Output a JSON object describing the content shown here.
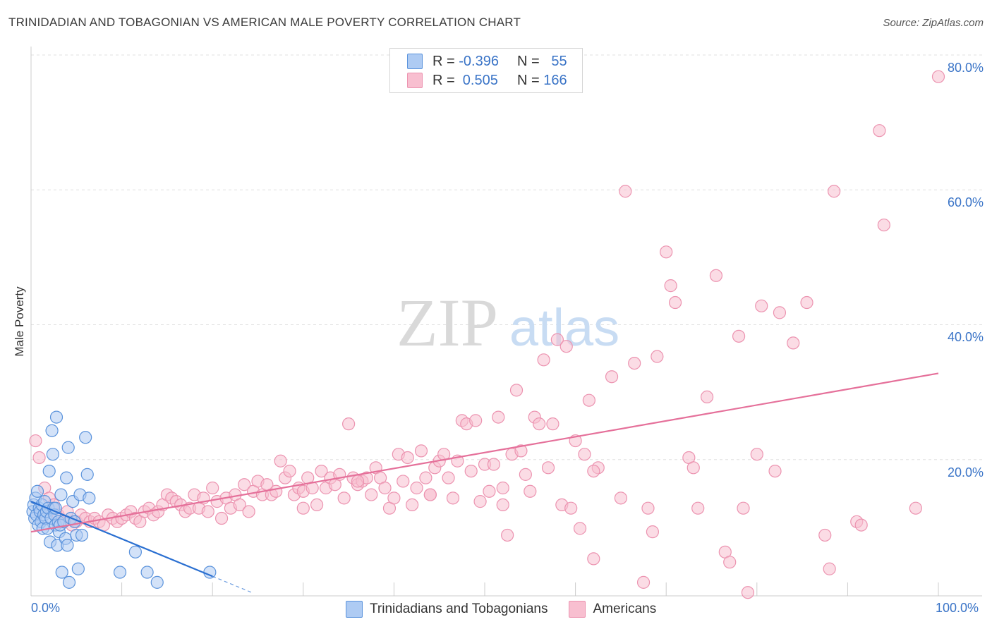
{
  "title": "TRINIDADIAN AND TOBAGONIAN VS AMERICAN MALE POVERTY CORRELATION CHART",
  "source": "Source: ZipAtlas.com",
  "watermark": {
    "zip": "ZIP",
    "atlas": "atlas"
  },
  "legend": {
    "rows": [
      {
        "r_label": "R = ",
        "r_value": "-0.396",
        "n_label": "N = ",
        "n_value": "55"
      },
      {
        "r_label": "R = ",
        "r_value": " 0.505",
        "n_label": "N = ",
        "n_value": "166"
      }
    ]
  },
  "bottom_legend": [
    "Trinidadians and Tobagonians",
    "Americans"
  ],
  "axis": {
    "y_title": "Male Poverty",
    "x_ticks": [
      "0.0%",
      "100.0%"
    ],
    "y_ticks": [
      "80.0%",
      "60.0%",
      "40.0%",
      "20.0%"
    ]
  },
  "colors": {
    "blue_fill": "#aecbf3",
    "blue_stroke": "#5b93dc",
    "blue_line": "#2a6fd1",
    "pink_fill": "#f8bfd0",
    "pink_stroke": "#ec93b0",
    "pink_line": "#e5709a",
    "grid": "#e0e0e0",
    "tick_text": "#3a74c7"
  },
  "chart_data": {
    "type": "scatter",
    "xlim": [
      0,
      100
    ],
    "ylim": [
      0,
      80
    ],
    "grid": true,
    "series": [
      {
        "name": "Trinidadians and Tobagonians",
        "trend": {
          "x0": 0,
          "y0": 14,
          "x1": 20,
          "y1": 2.9,
          "dash_to_x": 24.5
        },
        "points": [
          [
            0.2,
            12.5
          ],
          [
            0.3,
            13.5
          ],
          [
            0.4,
            11.5
          ],
          [
            0.5,
            14.5
          ],
          [
            0.6,
            12.0
          ],
          [
            0.7,
            15.5
          ],
          [
            0.8,
            10.5
          ],
          [
            0.9,
            13.0
          ],
          [
            1.0,
            12.5
          ],
          [
            1.1,
            11.0
          ],
          [
            1.2,
            13.5
          ],
          [
            1.3,
            10.0
          ],
          [
            1.4,
            12.0
          ],
          [
            1.5,
            14.0
          ],
          [
            1.6,
            11.5
          ],
          [
            1.7,
            12.5
          ],
          [
            1.8,
            10.0
          ],
          [
            1.9,
            13.0
          ],
          [
            2.0,
            18.5
          ],
          [
            2.1,
            8.0
          ],
          [
            2.2,
            11.5
          ],
          [
            2.3,
            24.5
          ],
          [
            2.4,
            21.0
          ],
          [
            2.5,
            13.0
          ],
          [
            2.6,
            12.0
          ],
          [
            2.7,
            10.5
          ],
          [
            2.8,
            26.5
          ],
          [
            2.9,
            7.5
          ],
          [
            3.0,
            11.0
          ],
          [
            3.1,
            9.5
          ],
          [
            3.2,
            10.5
          ],
          [
            3.3,
            15.0
          ],
          [
            3.4,
            3.5
          ],
          [
            3.6,
            11.0
          ],
          [
            3.8,
            8.5
          ],
          [
            3.9,
            17.5
          ],
          [
            4.0,
            7.5
          ],
          [
            4.1,
            22.0
          ],
          [
            4.2,
            2.0
          ],
          [
            4.4,
            11.5
          ],
          [
            4.6,
            14.0
          ],
          [
            4.8,
            11.0
          ],
          [
            5.0,
            9.0
          ],
          [
            5.2,
            4.0
          ],
          [
            5.4,
            15.0
          ],
          [
            5.6,
            9.0
          ],
          [
            6.0,
            23.5
          ],
          [
            6.2,
            18.0
          ],
          [
            6.4,
            14.5
          ],
          [
            9.8,
            3.5
          ],
          [
            11.5,
            6.5
          ],
          [
            12.8,
            3.5
          ],
          [
            13.9,
            2.0
          ],
          [
            19.7,
            3.5
          ],
          [
            2.7,
            13.0
          ]
        ]
      },
      {
        "name": "Americans",
        "trend": {
          "x0": 0,
          "y0": 9.5,
          "x1": 100,
          "y1": 33.0
        },
        "points": [
          [
            0.5,
            23.0
          ],
          [
            0.9,
            20.5
          ],
          [
            1.5,
            16.0
          ],
          [
            2.0,
            14.5
          ],
          [
            2.5,
            13.5
          ],
          [
            3.0,
            12.0
          ],
          [
            3.5,
            11.0
          ],
          [
            4.0,
            12.5
          ],
          [
            4.5,
            10.5
          ],
          [
            5.0,
            11.0
          ],
          [
            5.5,
            12.0
          ],
          [
            6.0,
            11.5
          ],
          [
            6.5,
            11.0
          ],
          [
            7.0,
            11.5
          ],
          [
            7.5,
            11.0
          ],
          [
            8.0,
            10.5
          ],
          [
            8.5,
            12.0
          ],
          [
            9.0,
            11.5
          ],
          [
            9.5,
            11.0
          ],
          [
            10.0,
            11.5
          ],
          [
            10.5,
            12.0
          ],
          [
            11.0,
            12.5
          ],
          [
            11.5,
            11.5
          ],
          [
            12.0,
            11.0
          ],
          [
            12.5,
            12.5
          ],
          [
            13.0,
            13.0
          ],
          [
            13.5,
            12.0
          ],
          [
            14.0,
            12.5
          ],
          [
            14.5,
            13.5
          ],
          [
            15.0,
            15.0
          ],
          [
            15.5,
            14.5
          ],
          [
            16.0,
            14.0
          ],
          [
            16.5,
            13.5
          ],
          [
            17.0,
            12.5
          ],
          [
            17.5,
            13.0
          ],
          [
            18.0,
            15.0
          ],
          [
            18.5,
            13.0
          ],
          [
            19.0,
            14.5
          ],
          [
            19.5,
            12.5
          ],
          [
            20.0,
            16.0
          ],
          [
            20.5,
            14.0
          ],
          [
            21.0,
            11.5
          ],
          [
            21.5,
            14.5
          ],
          [
            22.0,
            13.0
          ],
          [
            22.5,
            15.0
          ],
          [
            23.0,
            13.5
          ],
          [
            23.5,
            16.5
          ],
          [
            24.0,
            12.5
          ],
          [
            24.5,
            15.5
          ],
          [
            25.0,
            17.0
          ],
          [
            25.5,
            15.0
          ],
          [
            26.0,
            16.5
          ],
          [
            26.5,
            15.0
          ],
          [
            27.0,
            15.5
          ],
          [
            27.5,
            20.0
          ],
          [
            28.0,
            17.5
          ],
          [
            28.5,
            18.5
          ],
          [
            29.0,
            15.0
          ],
          [
            29.5,
            16.0
          ],
          [
            30.0,
            15.5
          ],
          [
            30.5,
            17.5
          ],
          [
            31.0,
            16.0
          ],
          [
            31.5,
            13.5
          ],
          [
            32.0,
            18.5
          ],
          [
            32.5,
            16.0
          ],
          [
            33.0,
            17.5
          ],
          [
            33.5,
            16.5
          ],
          [
            34.0,
            18.0
          ],
          [
            34.5,
            14.5
          ],
          [
            35.0,
            25.5
          ],
          [
            35.5,
            17.5
          ],
          [
            36.0,
            16.5
          ],
          [
            36.5,
            17.0
          ],
          [
            37.0,
            17.5
          ],
          [
            37.5,
            15.0
          ],
          [
            38.0,
            19.0
          ],
          [
            38.5,
            17.5
          ],
          [
            39.0,
            16.0
          ],
          [
            39.5,
            13.0
          ],
          [
            40.0,
            14.5
          ],
          [
            40.5,
            21.0
          ],
          [
            41.0,
            17.0
          ],
          [
            41.5,
            20.5
          ],
          [
            42.0,
            13.5
          ],
          [
            42.5,
            16.0
          ],
          [
            43.0,
            21.5
          ],
          [
            43.5,
            17.5
          ],
          [
            44.0,
            15.0
          ],
          [
            44.5,
            19.0
          ],
          [
            45.0,
            20.0
          ],
          [
            45.5,
            21.0
          ],
          [
            46.0,
            17.5
          ],
          [
            46.5,
            14.5
          ],
          [
            47.0,
            20.0
          ],
          [
            47.5,
            26.0
          ],
          [
            48.0,
            25.5
          ],
          [
            48.5,
            18.5
          ],
          [
            49.0,
            26.0
          ],
          [
            49.5,
            14.0
          ],
          [
            50.0,
            19.5
          ],
          [
            50.5,
            15.5
          ],
          [
            51.0,
            19.5
          ],
          [
            51.5,
            26.5
          ],
          [
            52.0,
            16.0
          ],
          [
            52.5,
            9.0
          ],
          [
            53.0,
            21.0
          ],
          [
            53.5,
            30.5
          ],
          [
            54.0,
            21.5
          ],
          [
            54.5,
            18.0
          ],
          [
            55.0,
            15.5
          ],
          [
            55.5,
            26.5
          ],
          [
            56.0,
            25.5
          ],
          [
            56.5,
            35.0
          ],
          [
            57.0,
            19.0
          ],
          [
            57.5,
            25.5
          ],
          [
            58.0,
            38.0
          ],
          [
            58.5,
            13.5
          ],
          [
            59.0,
            37.0
          ],
          [
            59.5,
            13.0
          ],
          [
            60.0,
            23.0
          ],
          [
            60.5,
            10.0
          ],
          [
            61.0,
            21.0
          ],
          [
            61.5,
            29.0
          ],
          [
            62.0,
            5.5
          ],
          [
            62.5,
            19.0
          ],
          [
            64.0,
            32.5
          ],
          [
            65.5,
            60.0
          ],
          [
            65.0,
            14.5
          ],
          [
            66.5,
            34.5
          ],
          [
            67.5,
            2.0
          ],
          [
            68.0,
            13.0
          ],
          [
            68.5,
            9.5
          ],
          [
            69.0,
            35.5
          ],
          [
            70.0,
            51.0
          ],
          [
            70.5,
            46.0
          ],
          [
            71.0,
            43.5
          ],
          [
            72.5,
            20.5
          ],
          [
            73.0,
            19.0
          ],
          [
            73.5,
            13.0
          ],
          [
            74.5,
            29.5
          ],
          [
            75.5,
            47.5
          ],
          [
            76.5,
            6.5
          ],
          [
            77.0,
            5.0
          ],
          [
            78.0,
            38.5
          ],
          [
            78.5,
            13.0
          ],
          [
            79.0,
            0.5
          ],
          [
            80.0,
            21.0
          ],
          [
            80.5,
            43.0
          ],
          [
            82.0,
            18.5
          ],
          [
            82.5,
            42.0
          ],
          [
            84.0,
            37.5
          ],
          [
            85.5,
            43.5
          ],
          [
            87.5,
            9.0
          ],
          [
            88.0,
            4.0
          ],
          [
            88.5,
            60.0
          ],
          [
            91.0,
            11.0
          ],
          [
            91.5,
            10.5
          ],
          [
            93.5,
            69.0
          ],
          [
            94.0,
            55.0
          ],
          [
            97.5,
            13.0
          ],
          [
            100.0,
            77.0
          ],
          [
            44.0,
            15.0
          ],
          [
            52.0,
            13.5
          ],
          [
            36.0,
            17.0
          ],
          [
            30.0,
            13.0
          ],
          [
            62.0,
            18.5
          ]
        ]
      }
    ]
  }
}
